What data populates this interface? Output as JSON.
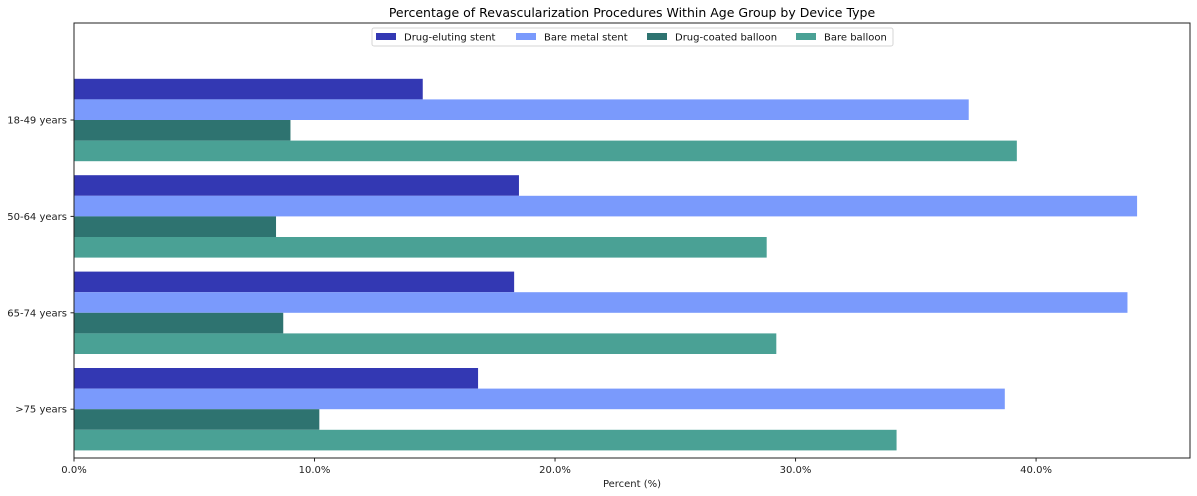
{
  "chart_data": {
    "type": "bar",
    "orientation": "horizontal",
    "title": "Percentage of Revascularization Procedures Within Age Group by Device Type",
    "xlabel": "Percent (%)",
    "ylabel": "",
    "xlim": [
      0,
      46.4
    ],
    "xticks": [
      0,
      10,
      20,
      30,
      40
    ],
    "xtick_labels": [
      "0.0%",
      "10.0%",
      "20.0%",
      "30.0%",
      "40.0%"
    ],
    "grid": false,
    "legend_position": "top-center",
    "categories": [
      "18-49 years",
      "50-64 years",
      "65-74 years",
      ">75 years"
    ],
    "series": [
      {
        "name": "Drug-eluting stent",
        "color": "#3338b3",
        "values": [
          14.5,
          18.5,
          18.3,
          16.8
        ]
      },
      {
        "name": "Bare metal stent",
        "color": "#7a9afc",
        "values": [
          37.2,
          44.2,
          43.8,
          38.7
        ]
      },
      {
        "name": "Drug-coated balloon",
        "color": "#2e7370",
        "values": [
          9.0,
          8.4,
          8.7,
          10.2
        ]
      },
      {
        "name": "Bare balloon",
        "color": "#4aa195",
        "values": [
          39.2,
          28.8,
          29.2,
          34.2
        ]
      }
    ]
  }
}
